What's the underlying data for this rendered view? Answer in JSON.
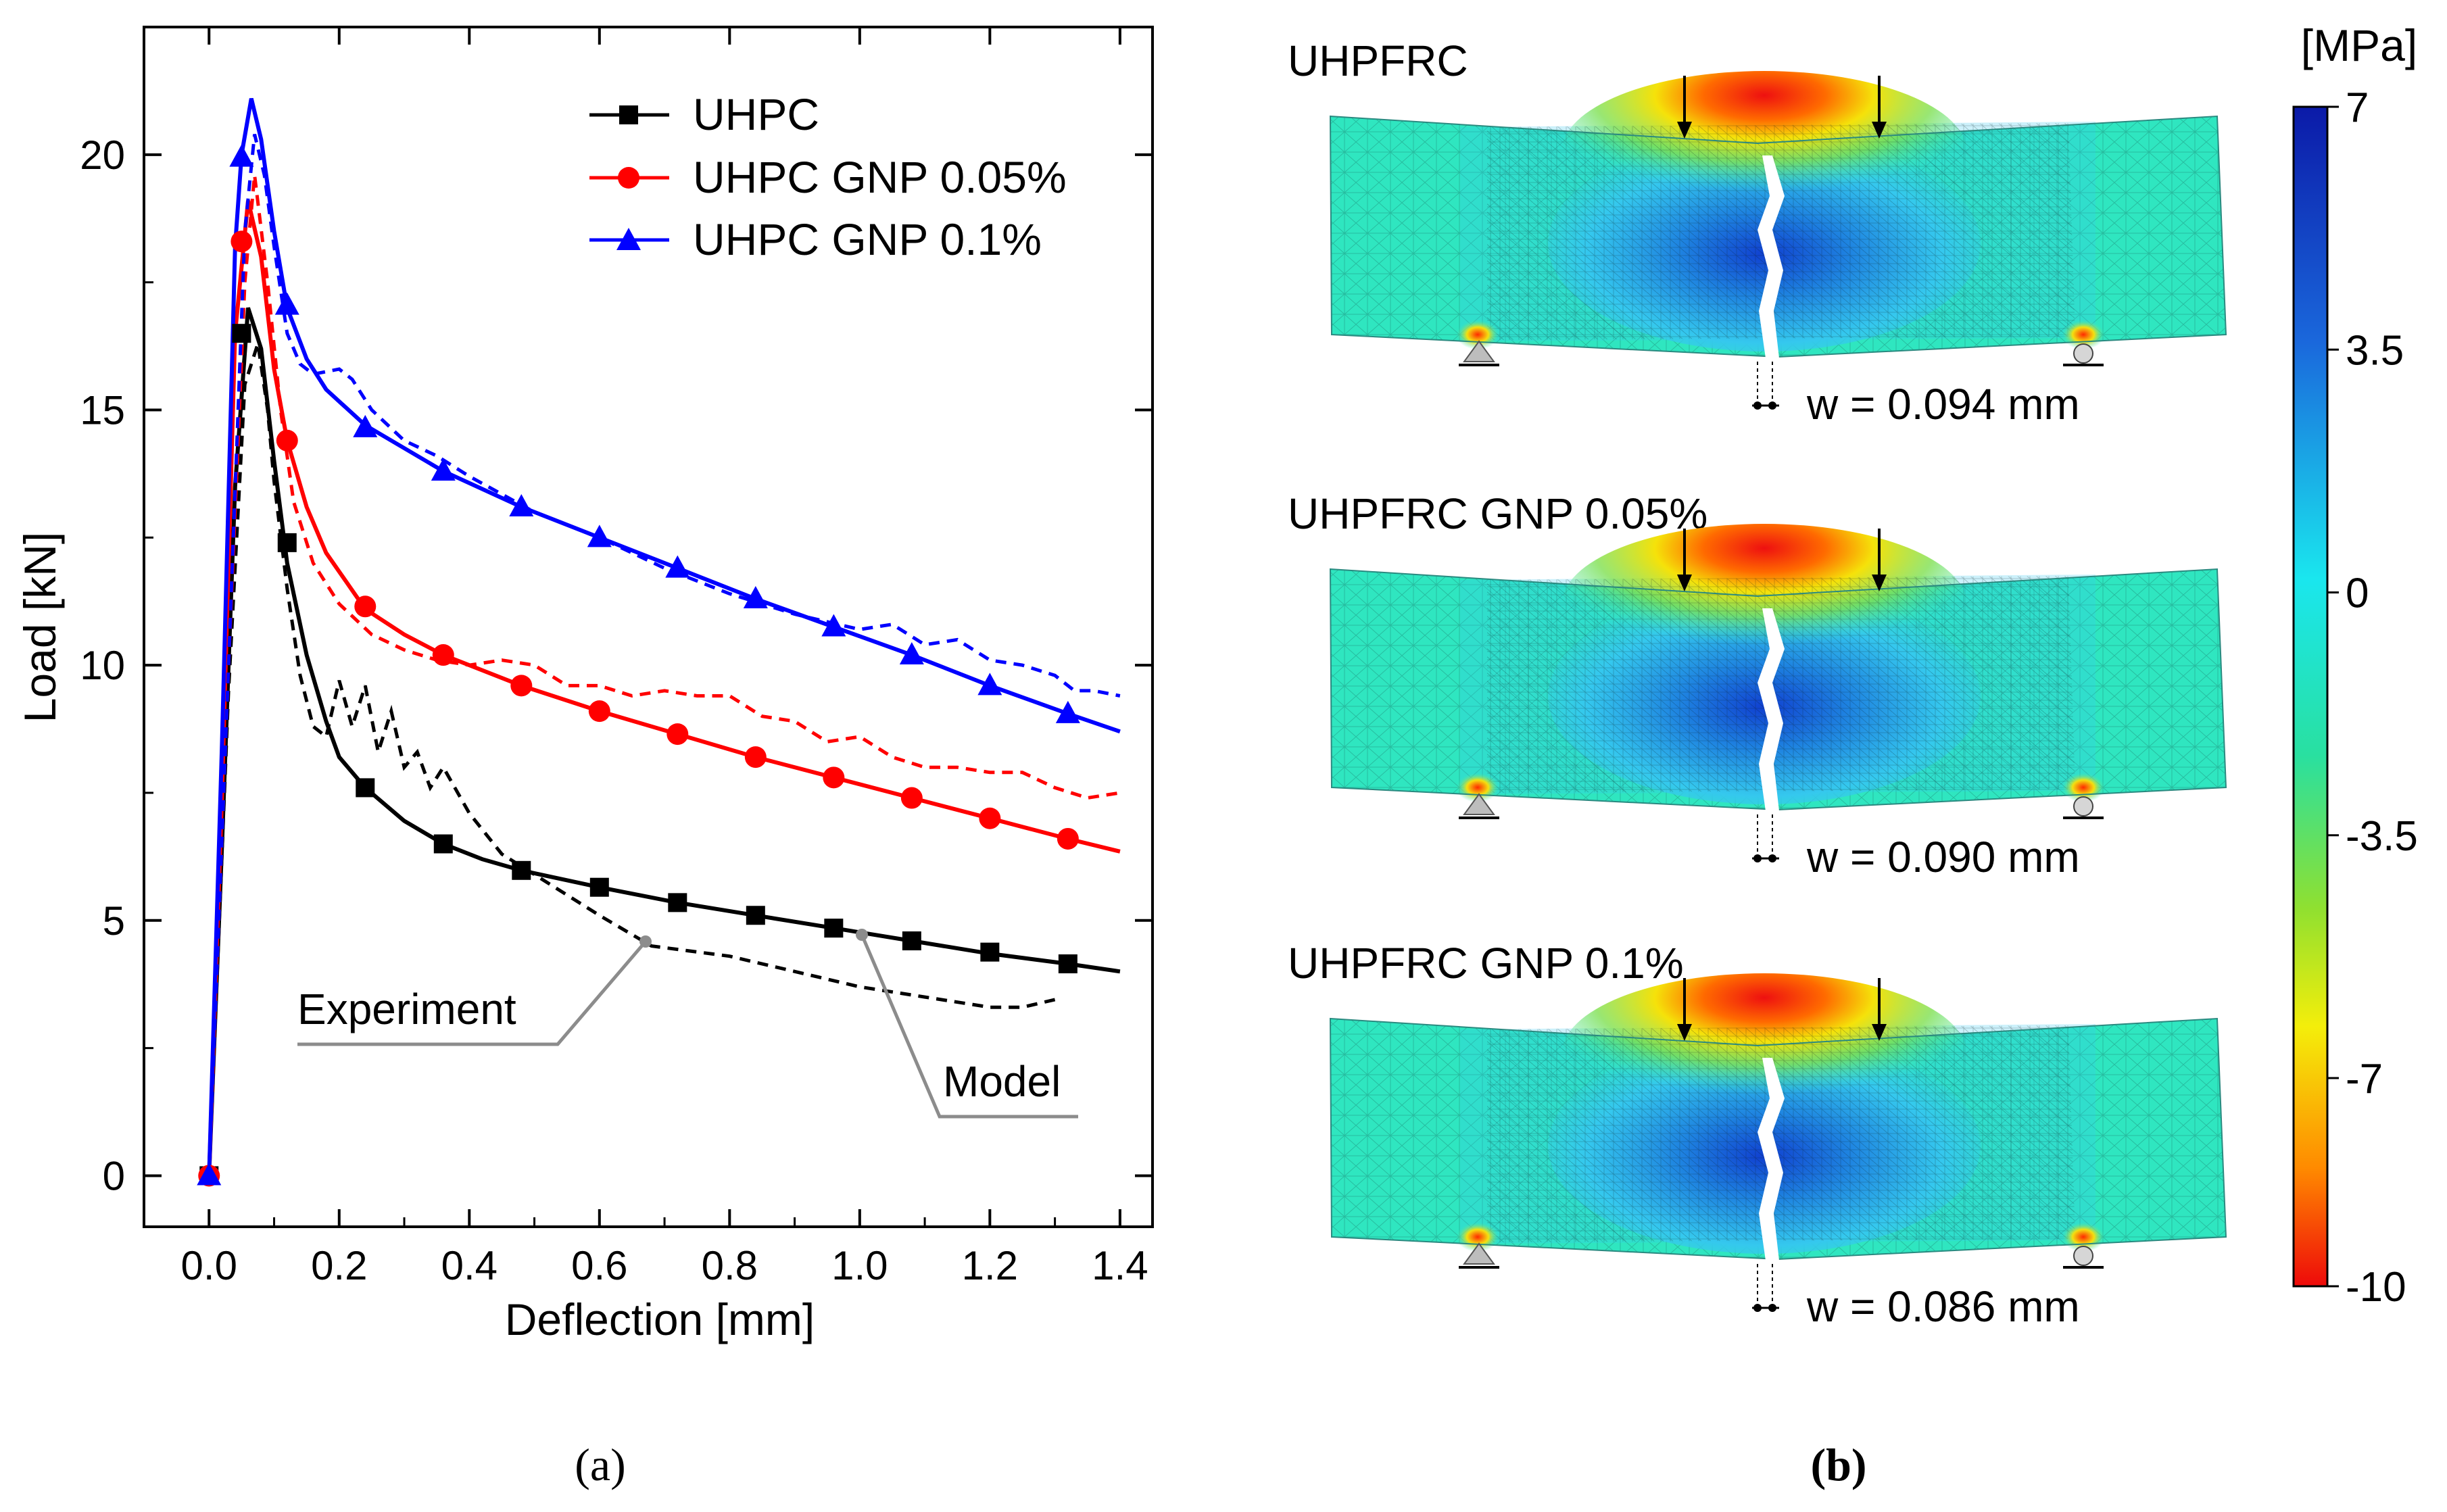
{
  "chart_data": [
    {
      "type": "line",
      "panel_label": "(a)",
      "xlabel": "Deflection [mm]",
      "ylabel": "Load [kN]",
      "xlim": [
        -0.1,
        1.45
      ],
      "ylim": [
        -1,
        22.5
      ],
      "xticks": [
        "0.0",
        "0.2",
        "0.4",
        "0.6",
        "0.8",
        "1.0",
        "1.2",
        "1.4"
      ],
      "yticks": [
        "0",
        "5",
        "10",
        "15",
        "20"
      ],
      "grid": false,
      "legend_position": "top-right",
      "series": [
        {
          "name": "UHPC",
          "color": "#000000",
          "marker": "square",
          "model": {
            "x": [
              0,
              0.02,
              0.04,
              0.06,
              0.08,
              0.1,
              0.12,
              0.15,
              0.18,
              0.2,
              0.24,
              0.3,
              0.36,
              0.42,
              0.48,
              0.6,
              0.72,
              0.84,
              0.96,
              1.08,
              1.2,
              1.32,
              1.4
            ],
            "y": [
              0,
              6.5,
              13.5,
              17.0,
              16.2,
              14.0,
              12.0,
              10.2,
              8.9,
              8.2,
              7.6,
              6.95,
              6.5,
              6.2,
              5.98,
              5.65,
              5.35,
              5.1,
              4.85,
              4.6,
              4.35,
              4.15,
              4.0
            ]
          },
          "markers": {
            "x": [
              0,
              0.05,
              0.12,
              0.24,
              0.36,
              0.48,
              0.6,
              0.72,
              0.84,
              0.96,
              1.08,
              1.2,
              1.32
            ],
            "y": [
              0,
              16.5,
              12.4,
              7.6,
              6.5,
              5.98,
              5.65,
              5.35,
              5.1,
              4.85,
              4.6,
              4.38,
              4.15
            ]
          },
          "experiment": {
            "x": [
              0,
              0.03,
              0.055,
              0.075,
              0.09,
              0.1,
              0.12,
              0.14,
              0.16,
              0.18,
              0.2,
              0.22,
              0.24,
              0.26,
              0.28,
              0.3,
              0.32,
              0.34,
              0.36,
              0.4,
              0.45,
              0.5,
              0.55,
              0.6,
              0.68,
              0.8,
              0.9,
              1.0,
              1.1,
              1.2,
              1.25,
              1.3
            ],
            "y": [
              0,
              9.5,
              15.5,
              16.3,
              15.0,
              13.6,
              11.5,
              9.8,
              8.8,
              8.6,
              9.7,
              8.8,
              9.6,
              8.3,
              9.1,
              8.0,
              8.3,
              7.6,
              8.0,
              7.1,
              6.3,
              5.9,
              5.5,
              5.1,
              4.5,
              4.3,
              4.0,
              3.7,
              3.5,
              3.3,
              3.3,
              3.45
            ]
          }
        },
        {
          "name": "UHPC GNP 0.05%",
          "color": "#ff0000",
          "marker": "circle",
          "model": {
            "x": [
              0,
              0.02,
              0.04,
              0.06,
              0.08,
              0.1,
              0.12,
              0.15,
              0.18,
              0.24,
              0.3,
              0.36,
              0.48,
              0.6,
              0.72,
              0.84,
              0.96,
              1.08,
              1.2,
              1.32,
              1.4
            ],
            "y": [
              0,
              7.5,
              16.5,
              19.1,
              18.0,
              15.8,
              14.4,
              13.1,
              12.2,
              11.1,
              10.6,
              10.2,
              9.6,
              9.1,
              8.65,
              8.2,
              7.8,
              7.4,
              7.0,
              6.6,
              6.35
            ]
          },
          "markers": {
            "x": [
              0,
              0.05,
              0.12,
              0.24,
              0.36,
              0.48,
              0.6,
              0.72,
              0.84,
              0.96,
              1.08,
              1.2,
              1.32
            ],
            "y": [
              0,
              18.3,
              14.4,
              11.15,
              10.2,
              9.6,
              9.1,
              8.65,
              8.2,
              7.8,
              7.4,
              7.0,
              6.6
            ]
          },
          "experiment": {
            "x": [
              0,
              0.03,
              0.055,
              0.07,
              0.09,
              0.11,
              0.13,
              0.16,
              0.2,
              0.25,
              0.3,
              0.35,
              0.4,
              0.45,
              0.5,
              0.55,
              0.6,
              0.65,
              0.7,
              0.75,
              0.8,
              0.85,
              0.9,
              0.95,
              1.0,
              1.05,
              1.1,
              1.15,
              1.2,
              1.25,
              1.3,
              1.35,
              1.4
            ],
            "y": [
              0,
              10.0,
              17.5,
              19.6,
              17.5,
              15.0,
              13.2,
              12.0,
              11.2,
              10.6,
              10.3,
              10.1,
              10.0,
              10.1,
              10.0,
              9.6,
              9.6,
              9.4,
              9.5,
              9.4,
              9.4,
              9.0,
              8.9,
              8.5,
              8.6,
              8.2,
              8.0,
              8.0,
              7.9,
              7.9,
              7.6,
              7.4,
              7.5
            ]
          }
        },
        {
          "name": "UHPC GNP 0.1%",
          "color": "#0000ff",
          "marker": "triangle",
          "model": {
            "x": [
              0,
              0.02,
              0.04,
              0.05,
              0.065,
              0.08,
              0.1,
              0.12,
              0.15,
              0.18,
              0.24,
              0.36,
              0.48,
              0.6,
              0.72,
              0.84,
              0.96,
              1.08,
              1.2,
              1.32,
              1.4
            ],
            "y": [
              0,
              8.5,
              18.2,
              20.0,
              21.1,
              20.3,
              18.5,
              17.0,
              16.0,
              15.4,
              14.7,
              13.8,
              13.1,
              12.5,
              11.9,
              11.3,
              10.75,
              10.2,
              9.6,
              9.05,
              8.7
            ]
          },
          "markers": {
            "x": [
              0,
              0.05,
              0.12,
              0.24,
              0.36,
              0.48,
              0.6,
              0.72,
              0.84,
              0.96,
              1.08,
              1.2,
              1.32
            ],
            "y": [
              0,
              19.95,
              17.05,
              14.65,
              13.8,
              13.1,
              12.5,
              11.9,
              11.3,
              10.75,
              10.2,
              9.6,
              9.05
            ]
          },
          "experiment": {
            "x": [
              0,
              0.03,
              0.055,
              0.07,
              0.085,
              0.1,
              0.12,
              0.14,
              0.16,
              0.2,
              0.22,
              0.25,
              0.3,
              0.35,
              0.4,
              0.5,
              0.6,
              0.7,
              0.8,
              0.9,
              1.0,
              1.05,
              1.1,
              1.15,
              1.2,
              1.25,
              1.3,
              1.33,
              1.36,
              1.4
            ],
            "y": [
              0,
              10.0,
              18.5,
              20.4,
              19.6,
              18.2,
              16.5,
              15.9,
              15.7,
              15.8,
              15.6,
              15.0,
              14.4,
              14.1,
              13.7,
              13.0,
              12.5,
              11.9,
              11.4,
              11.0,
              10.7,
              10.8,
              10.4,
              10.5,
              10.1,
              10.0,
              9.8,
              9.5,
              9.5,
              9.4
            ]
          }
        }
      ],
      "annotations": [
        {
          "text": "Experiment",
          "points_to": {
            "x": 0.68,
            "y": 4.5
          }
        },
        {
          "text": "Model",
          "points_to": {
            "x": 1.01,
            "y": 4.75
          }
        }
      ]
    },
    {
      "type": "heatmap",
      "panel_label": "(b)",
      "colorbar": {
        "unit": "[MPa]",
        "ticks": [
          "7",
          "3.5",
          "0",
          "-3.5",
          "-7",
          "-10"
        ],
        "range": [
          -10,
          7
        ]
      },
      "beams": [
        {
          "title": "UHPFRC",
          "crack_width": "w = 0.094 mm"
        },
        {
          "title": "UHPFRC GNP 0.05%",
          "crack_width": "w = 0.090 mm"
        },
        {
          "title": "UHPFRC GNP 0.1%",
          "crack_width": "w = 0.086 mm"
        }
      ]
    }
  ]
}
